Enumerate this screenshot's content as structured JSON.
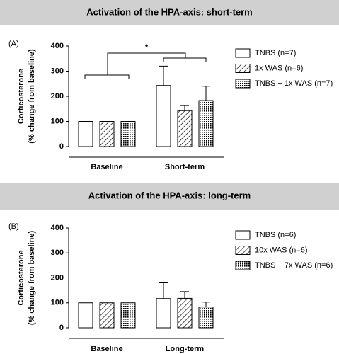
{
  "chart_data": [
    {
      "type": "bar",
      "title": "Activation of the HPA-axis: short-term",
      "panel_label": "(A)",
      "ylabel": [
        "Corticosterone",
        "(% change from baseline)"
      ],
      "categories": [
        "Baseline",
        "Short-term"
      ],
      "series": [
        {
          "name": "TNBS (n=7)",
          "pattern": "none",
          "color": "#000000",
          "values": [
            100,
            243
          ],
          "errors": [
            null,
            77
          ]
        },
        {
          "name": "1x WAS (n=6)",
          "pattern": "hatch",
          "color": "#000000",
          "values": [
            100,
            143
          ],
          "errors": [
            null,
            20
          ]
        },
        {
          "name": "TNBS + 1x WAS (n=7)",
          "pattern": "cross",
          "color": "#000000",
          "values": [
            100,
            183
          ],
          "errors": [
            null,
            57
          ]
        }
      ],
      "ylim": [
        0,
        400
      ],
      "yticks": [
        0,
        100,
        200,
        300,
        400
      ],
      "annotation": "*"
    },
    {
      "type": "bar",
      "title": "Activation of the HPA-axis: long-term",
      "panel_label": "(B)",
      "ylabel": [
        "Corticosterone",
        "(% change from baseline)"
      ],
      "categories": [
        "Baseline",
        "Long-term"
      ],
      "series": [
        {
          "name": "TNBS (n=6)",
          "pattern": "none",
          "color": "#000000",
          "values": [
            100,
            117
          ],
          "errors": [
            null,
            63
          ]
        },
        {
          "name": "10x WAS (n=6)",
          "pattern": "hatch",
          "color": "#000000",
          "values": [
            100,
            118
          ],
          "errors": [
            null,
            27
          ]
        },
        {
          "name": "TNBS + 7x WAS (n=6)",
          "pattern": "cross",
          "color": "#000000",
          "values": [
            100,
            83
          ],
          "errors": [
            null,
            20
          ]
        }
      ],
      "ylim": [
        0,
        400
      ],
      "yticks": [
        0,
        100,
        200,
        300,
        400
      ]
    }
  ]
}
